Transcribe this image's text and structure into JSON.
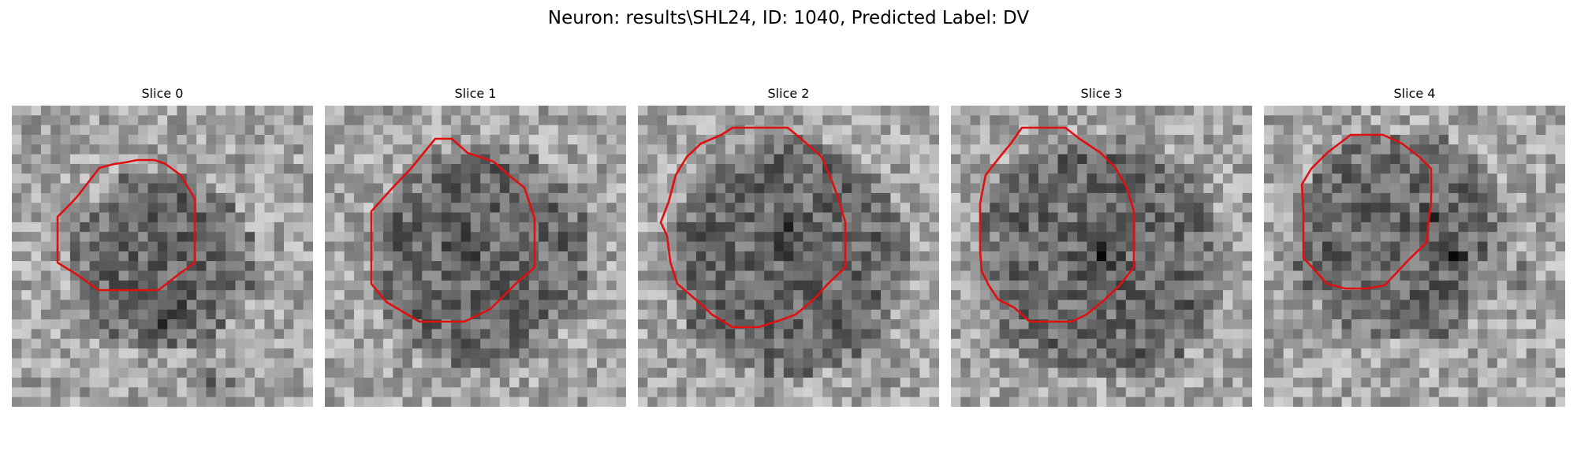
{
  "figure": {
    "title": "Neuron: results\\SHL24, ID: 1040, Predicted Label: DV"
  },
  "colors": {
    "contour": "#e01010",
    "background": "#ffffff"
  },
  "panels": [
    {
      "title": "Slice 0"
    },
    {
      "title": "Slice 1"
    },
    {
      "title": "Slice 2"
    },
    {
      "title": "Slice 3"
    },
    {
      "title": "Slice 4"
    }
  ]
}
